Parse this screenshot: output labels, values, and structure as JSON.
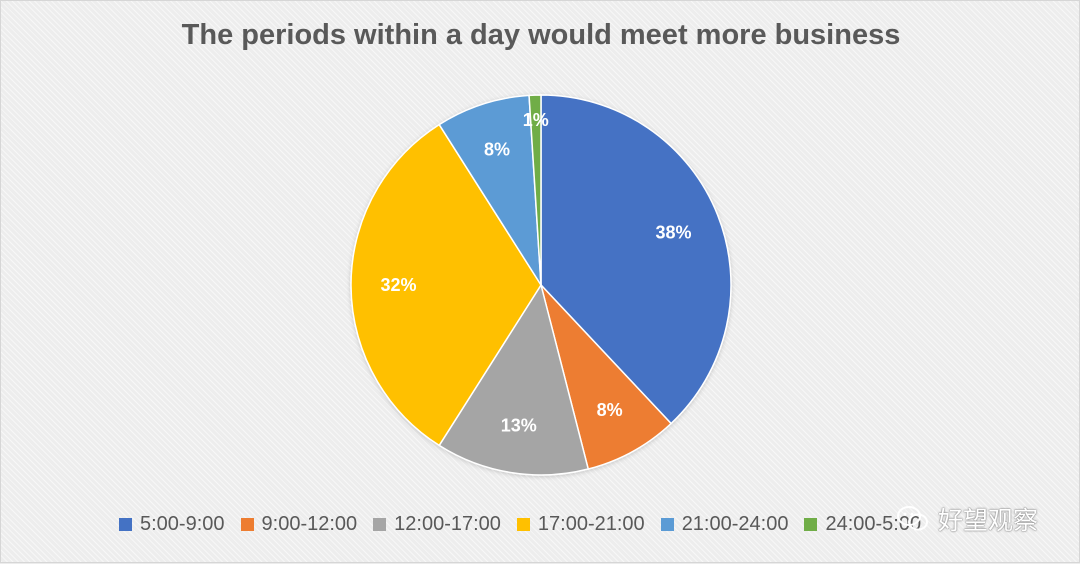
{
  "chart_data": {
    "type": "pie",
    "title": "The periods within a day would meet more business",
    "categories": [
      "5:00-9:00",
      "9:00-12:00",
      "12:00-17:00",
      "17:00-21:00",
      "21:00-24:00",
      "24:00-5:00"
    ],
    "values": [
      38,
      8,
      13,
      32,
      8,
      1
    ],
    "labels": [
      "38%",
      "8%",
      "13%",
      "32%",
      "8%",
      "1%"
    ],
    "colors": [
      "#4472c4",
      "#ed7d31",
      "#a5a5a5",
      "#ffc000",
      "#5b9bd5",
      "#70ad47"
    ],
    "legend": "bottom"
  },
  "watermark": {
    "text": "好望观察",
    "icon": "wechat-icon"
  }
}
